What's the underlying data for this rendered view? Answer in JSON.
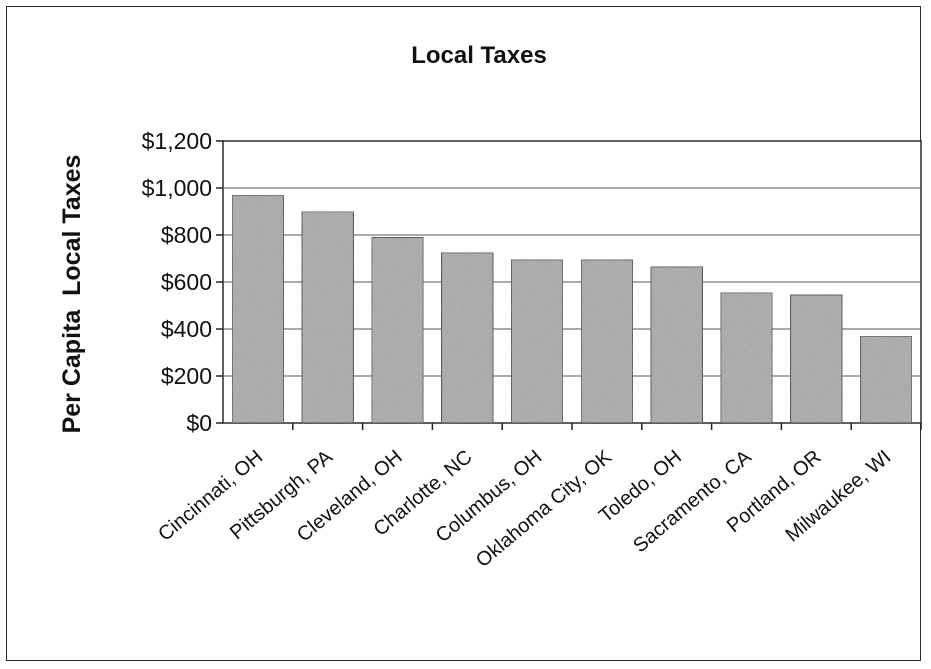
{
  "chart_data": {
    "type": "bar",
    "title": "Local Taxes",
    "xlabel": "",
    "ylabel": "Per Capita  Local Taxes",
    "ylim": [
      0,
      1200
    ],
    "yticks": [
      "$0",
      "$200",
      "$400",
      "$600",
      "$800",
      "$1,000",
      "$1,200"
    ],
    "categories": [
      "Cincinnati, OH",
      "Pittsburgh, PA",
      "Cleveland, OH",
      "Charlotte, NC",
      "Columbus, OH",
      "Oklahoma City, OK",
      "Toledo, OH",
      "Sacramento, CA",
      "Portland, OR",
      "Milwaukee, WI"
    ],
    "values": [
      970,
      900,
      790,
      725,
      695,
      695,
      665,
      555,
      545,
      370
    ],
    "grid": true,
    "bar_color": "#a9a9a9"
  }
}
